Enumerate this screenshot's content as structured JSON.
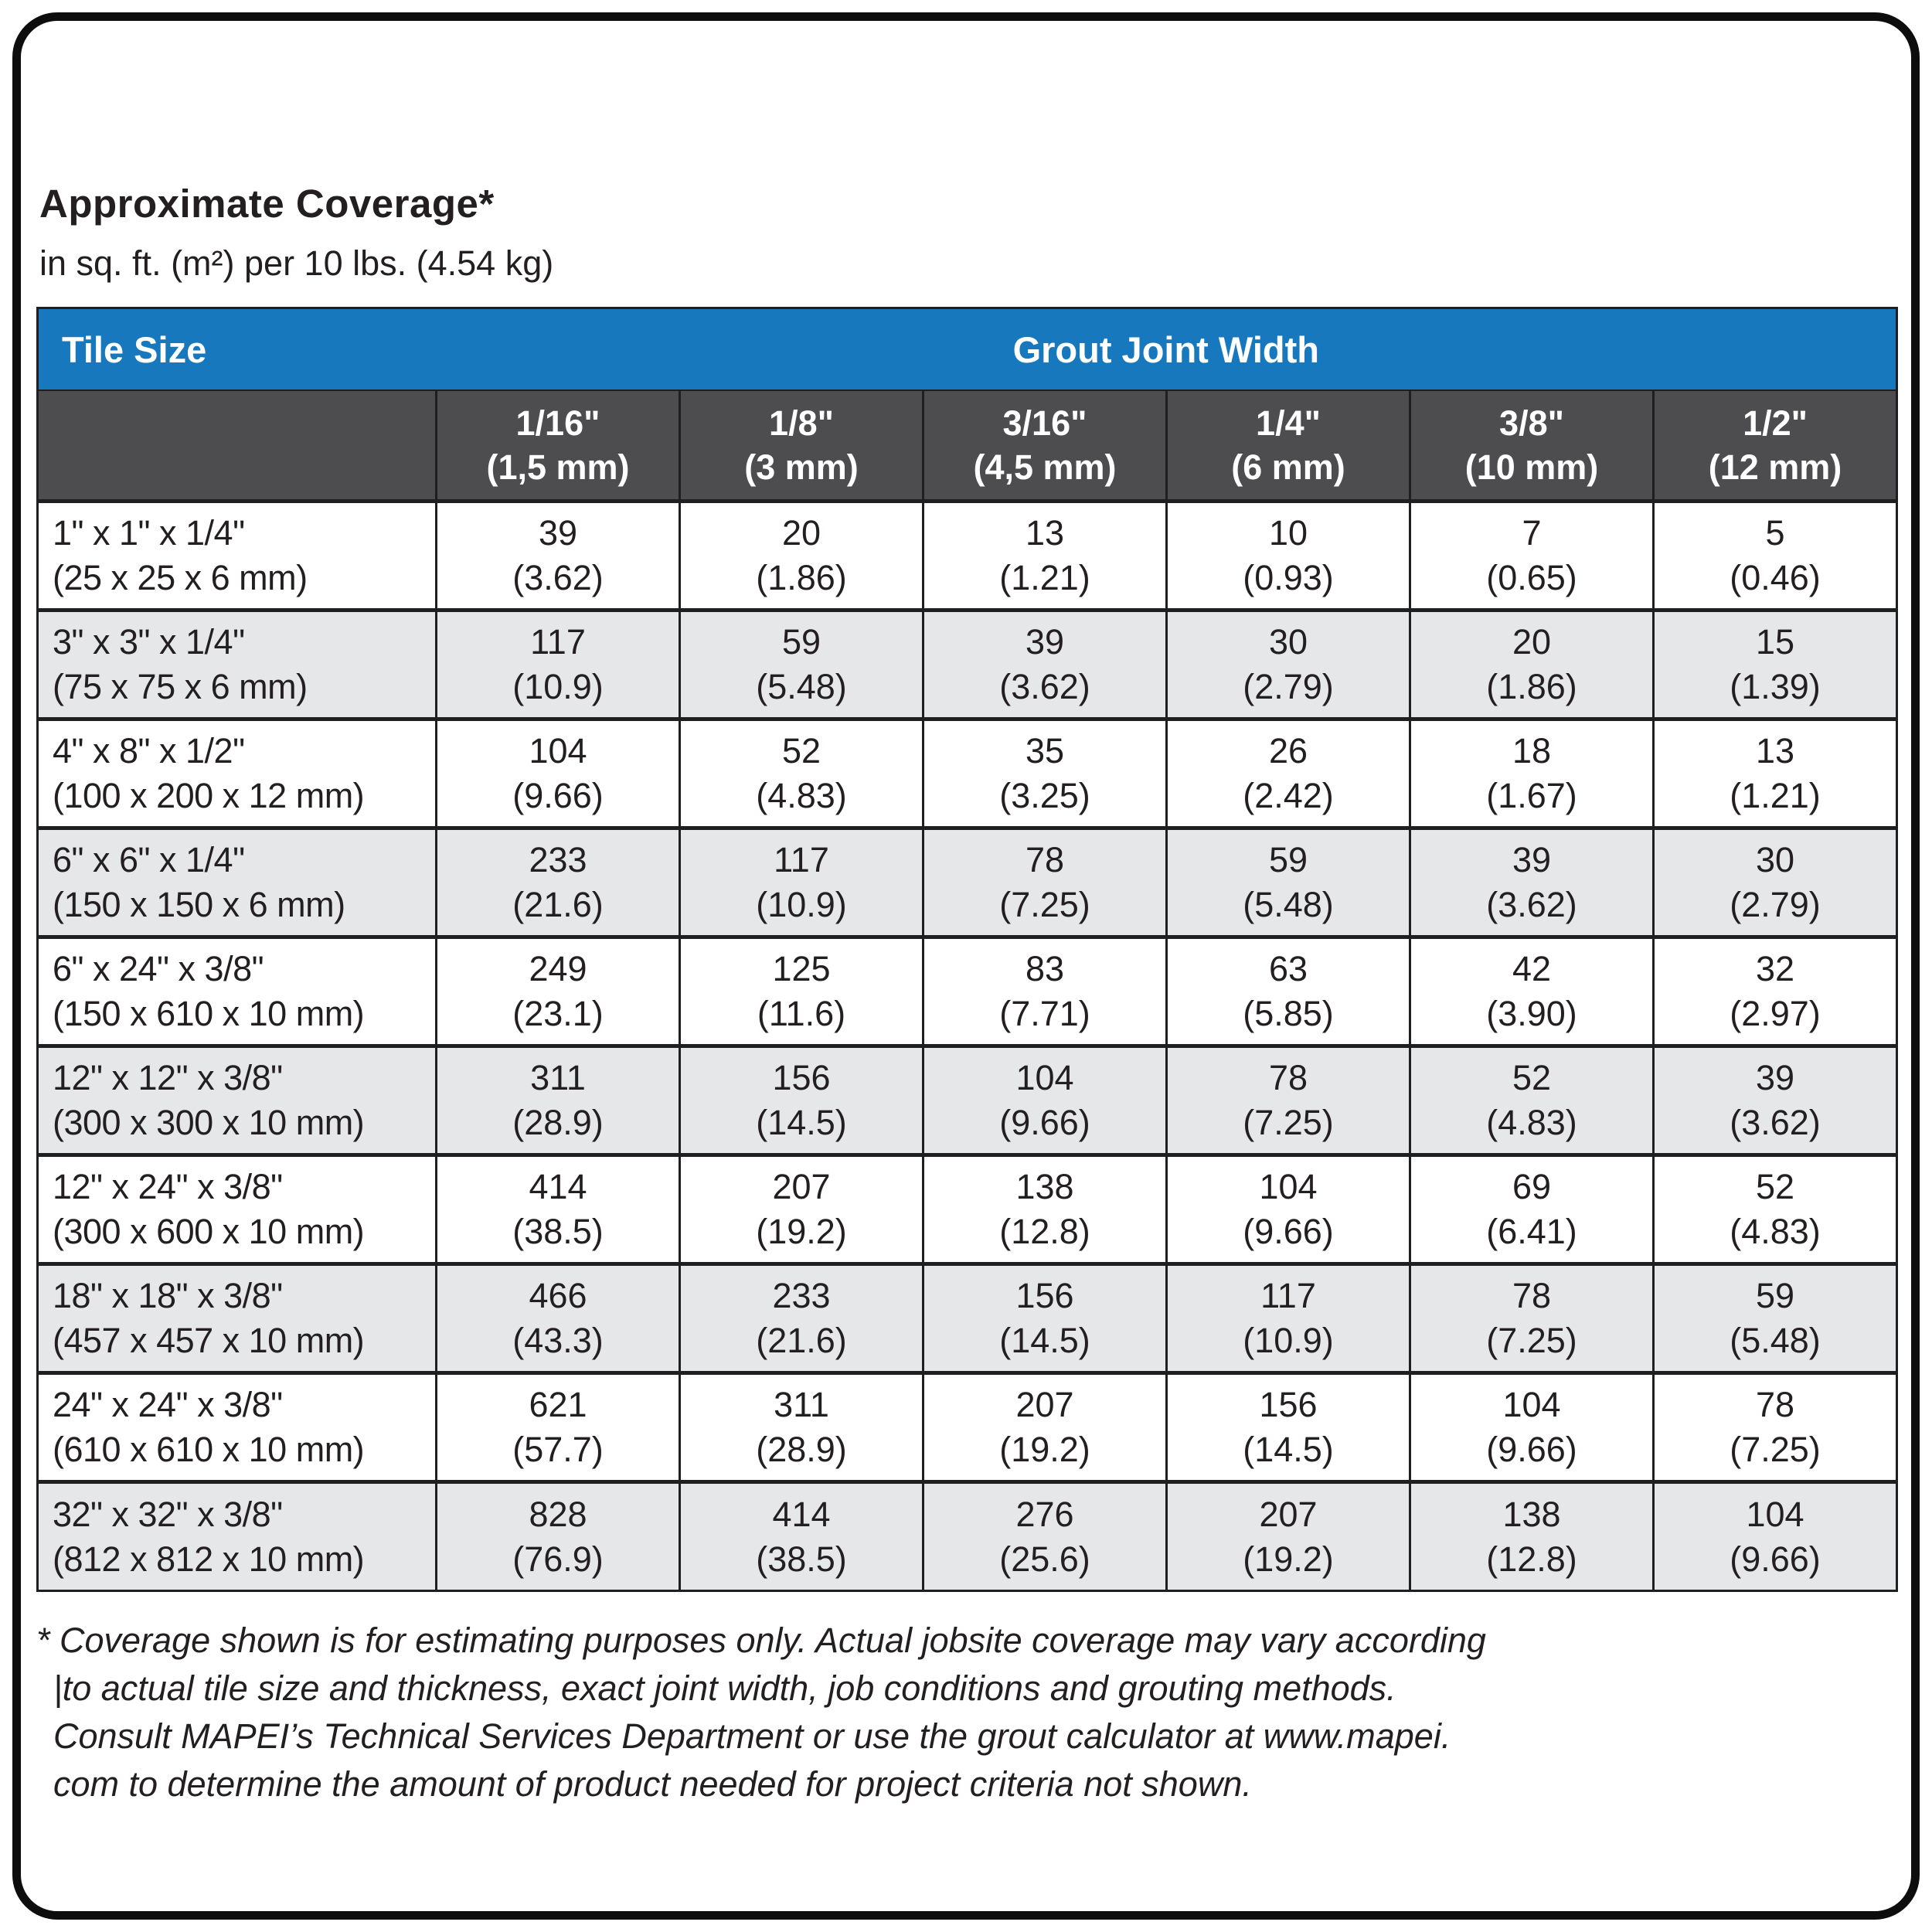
{
  "page": {
    "title": "Approximate Coverage*",
    "subtitle": "in sq. ft. (m²) per 10 lbs. (4.54 kg)"
  },
  "table": {
    "corner_label": "Tile Size",
    "group_header": "Grout Joint Width",
    "columns": [
      {
        "inch": "1/16\"",
        "mm": "(1,5 mm)"
      },
      {
        "inch": "1/8\"",
        "mm": "(3 mm)"
      },
      {
        "inch": "3/16\"",
        "mm": "(4,5 mm)"
      },
      {
        "inch": "1/4\"",
        "mm": "(6 mm)"
      },
      {
        "inch": "3/8\"",
        "mm": "(10 mm)"
      },
      {
        "inch": "1/2\"",
        "mm": "(12 mm)"
      }
    ],
    "rows": [
      {
        "size_in": "1\" x 1\" x 1/4\"",
        "size_mm": "(25 x 25 x 6 mm)",
        "values": [
          [
            "39",
            "(3.62)"
          ],
          [
            "20",
            "(1.86)"
          ],
          [
            "13",
            "(1.21)"
          ],
          [
            "10",
            "(0.93)"
          ],
          [
            "7",
            "(0.65)"
          ],
          [
            "5",
            "(0.46)"
          ]
        ]
      },
      {
        "size_in": "3\" x 3\" x 1/4\"",
        "size_mm": "(75 x 75 x 6 mm)",
        "values": [
          [
            "117",
            "(10.9)"
          ],
          [
            "59",
            "(5.48)"
          ],
          [
            "39",
            "(3.62)"
          ],
          [
            "30",
            "(2.79)"
          ],
          [
            "20",
            "(1.86)"
          ],
          [
            "15",
            "(1.39)"
          ]
        ]
      },
      {
        "size_in": "4\" x 8\" x 1/2\"",
        "size_mm": "(100 x 200 x 12 mm)",
        "values": [
          [
            "104",
            "(9.66)"
          ],
          [
            "52",
            "(4.83)"
          ],
          [
            "35",
            "(3.25)"
          ],
          [
            "26",
            "(2.42)"
          ],
          [
            "18",
            "(1.67)"
          ],
          [
            "13",
            "(1.21)"
          ]
        ]
      },
      {
        "size_in": "6\" x 6\" x 1/4\"",
        "size_mm": "(150 x 150 x 6 mm)",
        "values": [
          [
            "233",
            "(21.6)"
          ],
          [
            "117",
            "(10.9)"
          ],
          [
            "78",
            "(7.25)"
          ],
          [
            "59",
            "(5.48)"
          ],
          [
            "39",
            "(3.62)"
          ],
          [
            "30",
            "(2.79)"
          ]
        ]
      },
      {
        "size_in": "6\" x 24\" x 3/8\"",
        "size_mm": "(150 x 610 x 10 mm)",
        "values": [
          [
            "249",
            "(23.1)"
          ],
          [
            "125",
            "(11.6)"
          ],
          [
            "83",
            "(7.71)"
          ],
          [
            "63",
            "(5.85)"
          ],
          [
            "42",
            "(3.90)"
          ],
          [
            "32",
            "(2.97)"
          ]
        ]
      },
      {
        "size_in": "12\" x 12\" x 3/8\"",
        "size_mm": "(300 x 300 x 10 mm)",
        "values": [
          [
            "311",
            "(28.9)"
          ],
          [
            "156",
            "(14.5)"
          ],
          [
            "104",
            "(9.66)"
          ],
          [
            "78",
            "(7.25)"
          ],
          [
            "52",
            "(4.83)"
          ],
          [
            "39",
            "(3.62)"
          ]
        ]
      },
      {
        "size_in": "12\" x 24\" x 3/8\"",
        "size_mm": "(300 x 600 x 10 mm)",
        "values": [
          [
            "414",
            "(38.5)"
          ],
          [
            "207",
            "(19.2)"
          ],
          [
            "138",
            "(12.8)"
          ],
          [
            "104",
            "(9.66)"
          ],
          [
            "69",
            "(6.41)"
          ],
          [
            "52",
            "(4.83)"
          ]
        ]
      },
      {
        "size_in": "18\" x 18\" x 3/8\"",
        "size_mm": "(457 x 457 x 10 mm)",
        "values": [
          [
            "466",
            "(43.3)"
          ],
          [
            "233",
            "(21.6)"
          ],
          [
            "156",
            "(14.5)"
          ],
          [
            "117",
            "(10.9)"
          ],
          [
            "78",
            "(7.25)"
          ],
          [
            "59",
            "(5.48)"
          ]
        ]
      },
      {
        "size_in": "24\" x 24\" x 3/8\"",
        "size_mm": "(610 x 610 x 10 mm)",
        "values": [
          [
            "621",
            "(57.7)"
          ],
          [
            "311",
            "(28.9)"
          ],
          [
            "207",
            "(19.2)"
          ],
          [
            "156",
            "(14.5)"
          ],
          [
            "104",
            "(9.66)"
          ],
          [
            "78",
            "(7.25)"
          ]
        ]
      },
      {
        "size_in": "32\" x 32\" x 3/8\"",
        "size_mm": "(812 x 812 x 10 mm)",
        "values": [
          [
            "828",
            "(76.9)"
          ],
          [
            "414",
            "(38.5)"
          ],
          [
            "276",
            "(25.6)"
          ],
          [
            "207",
            "(19.2)"
          ],
          [
            "138",
            "(12.8)"
          ],
          [
            "104",
            "(9.66)"
          ]
        ]
      }
    ]
  },
  "footnote": {
    "lines": [
      "* Coverage shown is for estimating purposes only. Actual jobsite coverage may vary according",
      "|to actual tile size and thickness, exact joint width, job conditions and grouting methods.",
      "Consult MAPEI’s Technical Services Department or use the grout calculator at www.mapei.",
      "com to determine the amount of product needed for project criteria not shown."
    ]
  },
  "colors": {
    "header_blue": "#1878BE",
    "header_gray": "#4D4D4F",
    "row_alt_gray": "#E6E7E8",
    "border_black": "#1F1F21",
    "text_black": "#231F20"
  }
}
